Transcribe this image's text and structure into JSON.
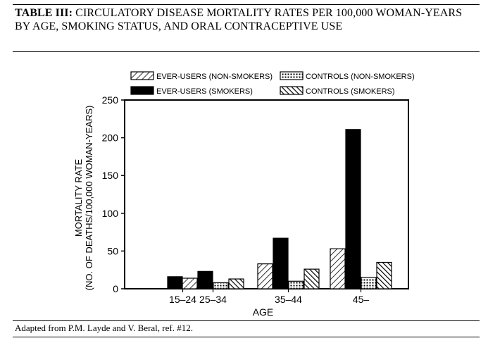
{
  "header": {
    "label": "TABLE III:",
    "text": "CIRCULATORY DISEASE MORTALITY RATES PER 100,000 WOMAN-YEARS BY AGE, SMOKING STATUS, AND ORAL CONTRACEPTIVE USE"
  },
  "footer": {
    "source": "Adapted from P.M. Layde and V. Beral, ref. #12."
  },
  "chart_data": {
    "type": "bar",
    "title": "",
    "xlabel": "AGE",
    "ylabel": "MORTALITY RATE",
    "ylabel_line2": "(NO. OF DEATHS/100,000 WOMAN-YEARS)",
    "ylim": [
      0,
      250
    ],
    "yticks": [
      0,
      50,
      100,
      150,
      200,
      250
    ],
    "grid": false,
    "legend_position": "top",
    "categories": [
      "15–24",
      "25–34",
      "35–44",
      "45–"
    ],
    "series": [
      {
        "name": "EVER-USERS (NON-SMOKERS)",
        "values": [
          0,
          14,
          33,
          53
        ],
        "pattern": "diag-light"
      },
      {
        "name": "EVER-USERS (SMOKERS)",
        "values": [
          16,
          23,
          67,
          211
        ],
        "pattern": "solid"
      },
      {
        "name": "CONTROLS (NON-SMOKERS)",
        "values": [
          0,
          8,
          10,
          15
        ],
        "pattern": "dots"
      },
      {
        "name": "CONTROLS (SMOKERS)",
        "values": [
          0,
          13,
          26,
          35
        ],
        "pattern": "diag-back"
      }
    ]
  }
}
